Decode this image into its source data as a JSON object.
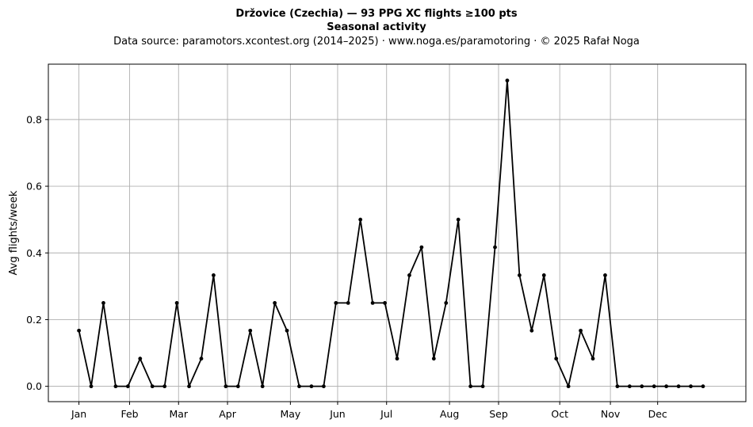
{
  "chart_data": {
    "type": "line",
    "title": "Držovice (Czechia)  —  93 PPG XC flights ≥100 pts",
    "subtitle": "Seasonal activity",
    "source_line": "Data source: paramotors.xcontest.org (2014–2025)  ·  www.noga.es/paramotoring  ·  © 2025 Rafał Noga",
    "xlabel": "",
    "ylabel": "Avg flights/week",
    "xlim": [
      -2.5,
      54.5
    ],
    "ylim": [
      -0.046,
      0.966
    ],
    "grid": true,
    "line_color": "#000000",
    "month_ticks": [
      {
        "label": "Jan",
        "week": 0
      },
      {
        "label": "Feb",
        "week": 4.14
      },
      {
        "label": "Mar",
        "week": 8.14
      },
      {
        "label": "Apr",
        "week": 12.14
      },
      {
        "label": "May",
        "week": 17.28
      },
      {
        "label": "Jun",
        "week": 21.14
      },
      {
        "label": "Jul",
        "week": 25.14
      },
      {
        "label": "Aug",
        "week": 30.28
      },
      {
        "label": "Sep",
        "week": 34.29
      },
      {
        "label": "Oct",
        "week": 39.29
      },
      {
        "label": "Nov",
        "week": 43.43
      },
      {
        "label": "Dec",
        "week": 47.29
      }
    ],
    "y_ticks": [
      {
        "label": "0.0",
        "value": 0.0
      },
      {
        "label": "0.2",
        "value": 0.2
      },
      {
        "label": "0.4",
        "value": 0.4
      },
      {
        "label": "0.6",
        "value": 0.6
      },
      {
        "label": "0.8",
        "value": 0.8
      }
    ],
    "series": [
      {
        "x": [
          0,
          1,
          2,
          3,
          4,
          5,
          6,
          7,
          8,
          9,
          10,
          11,
          12,
          13,
          14,
          15,
          16,
          17,
          18,
          19,
          20,
          21,
          22,
          23,
          24,
          25,
          26,
          27,
          28,
          29,
          30,
          31,
          32,
          33,
          34,
          35,
          36,
          37,
          38,
          39,
          40,
          41,
          42,
          43,
          44,
          45,
          46,
          47,
          48,
          49,
          50,
          51
        ],
        "values": [
          0.167,
          0,
          0.25,
          0,
          0,
          0.083,
          0,
          0,
          0.25,
          0,
          0.083,
          0.333,
          0,
          0,
          0.167,
          0,
          0.25,
          0.167,
          0,
          0,
          0,
          0.25,
          0.25,
          0.5,
          0.25,
          0.25,
          0.083,
          0.333,
          0.417,
          0.083,
          0.25,
          0.5,
          0,
          0,
          0.417,
          0.917,
          0.333,
          0.167,
          0.333,
          0.083,
          0,
          0.167,
          0.083,
          0.333,
          0,
          0,
          0,
          0,
          0,
          0,
          0,
          0
        ]
      }
    ]
  }
}
